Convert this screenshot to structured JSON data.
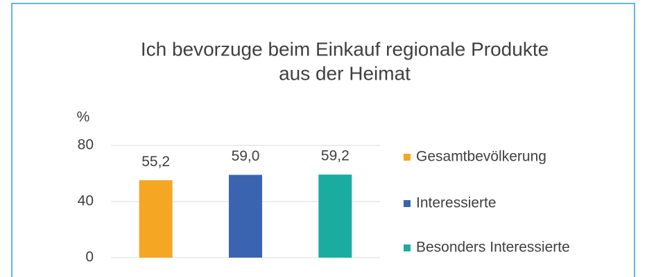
{
  "chart_data": {
    "type": "bar",
    "title": [
      "Ich bevorzuge beim Einkauf regionale Produkte",
      "aus der Heimat"
    ],
    "y_axis_label": "%",
    "series": [
      {
        "name": "Gesamtbevölkerung",
        "color": "#f5a623",
        "values": [
          55.2
        ],
        "value_labels": [
          "55,2"
        ]
      },
      {
        "name": "Interessierte",
        "color": "#3a64b0",
        "values": [
          59.0
        ],
        "value_labels": [
          "59,0"
        ]
      },
      {
        "name": "Besonders Interessierte",
        "color": "#1aaca0",
        "values": [
          59.2
        ],
        "value_labels": [
          "59,2"
        ]
      }
    ],
    "ylim": [
      0,
      80
    ],
    "yticks": [
      0,
      40,
      80
    ],
    "grid": true,
    "legend": "right"
  }
}
